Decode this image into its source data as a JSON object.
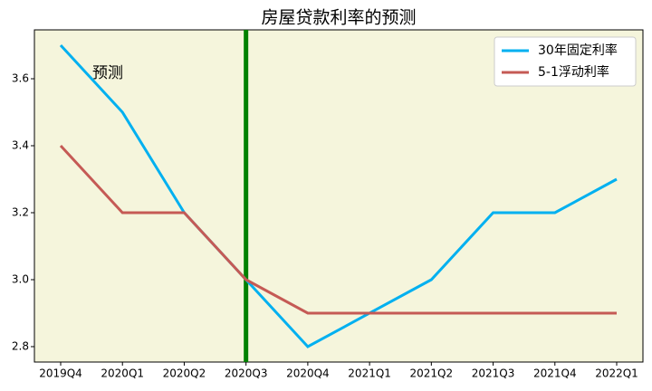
{
  "chart_data": {
    "type": "line",
    "title": "房屋贷款利率的预测",
    "categories": [
      "2019Q4",
      "2020Q1",
      "2020Q2",
      "2020Q3",
      "2020Q4",
      "2021Q1",
      "2021Q2",
      "2021Q3",
      "2021Q4",
      "2022Q1"
    ],
    "series": [
      {
        "name": "30年固定利率",
        "color": "#00b0f0",
        "values": [
          3.7,
          3.5,
          3.2,
          3.0,
          2.8,
          2.9,
          3.0,
          3.2,
          3.2,
          3.3
        ]
      },
      {
        "name": "5-1浮动利率",
        "color": "#c55a55",
        "values": [
          3.4,
          3.2,
          3.2,
          3.0,
          2.9,
          2.9,
          2.9,
          2.9,
          2.9,
          2.9
        ]
      }
    ],
    "ylim": [
      2.754,
      3.746
    ],
    "yticks": [
      2.8,
      {
        "value": 3.0,
        "label": "3.0"
      },
      3.2,
      3.4,
      3.6
    ],
    "vline": "2020Q3",
    "vline_color": "green",
    "annotation": "预测",
    "legend": "upper right",
    "background": "#f5f5dc"
  }
}
